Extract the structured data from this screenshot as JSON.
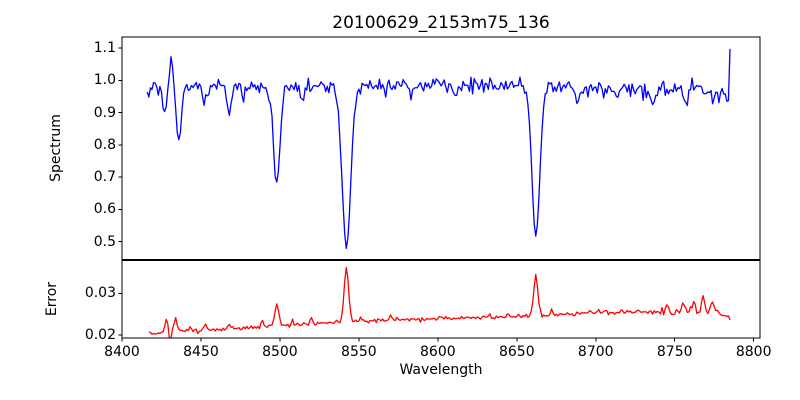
{
  "figure": {
    "background": "#ffffff",
    "text_color": "#000000",
    "axes_color": "#000000"
  },
  "chart_data": [
    {
      "type": "line",
      "name": "spectrum",
      "title": "20100629_2153m75_136",
      "ylabel": "Spectrum",
      "line_color": "#0000ff",
      "grid": false,
      "legend": "none",
      "xlim": [
        8400,
        8804
      ],
      "ylim": [
        0.4447,
        1.134
      ],
      "yticks": [
        {
          "value": 0.5,
          "label": "0.5"
        },
        {
          "value": 0.6,
          "label": "0.6"
        },
        {
          "value": 0.7,
          "label": "0.7"
        },
        {
          "value": 0.8,
          "label": "0.8"
        },
        {
          "value": 0.9,
          "label": "0.9"
        },
        {
          "value": 1.0,
          "label": "1.0"
        },
        {
          "value": 1.1,
          "label": "1.1"
        }
      ],
      "x_start": 8416,
      "x_end": 8785,
      "x_step": 1.0,
      "continuum": [
        [
          8416,
          0.971
        ],
        [
          8432,
          0.977
        ],
        [
          8450,
          0.979
        ],
        [
          8475,
          0.982
        ],
        [
          8505,
          0.979
        ],
        [
          8540,
          0.981
        ],
        [
          8565,
          0.982
        ],
        [
          8590,
          0.985
        ],
        [
          8615,
          0.988
        ],
        [
          8640,
          0.986
        ],
        [
          8665,
          0.983
        ],
        [
          8690,
          0.979
        ],
        [
          8715,
          0.977
        ],
        [
          8735,
          0.974
        ],
        [
          8755,
          0.97
        ],
        [
          8770,
          0.962
        ],
        [
          8785,
          0.955
        ]
      ],
      "features": [
        {
          "center": 8427.0,
          "amp": -0.082,
          "sigma": 1.2
        },
        {
          "center": 8431.0,
          "amp": 0.088,
          "sigma": 1.1
        },
        {
          "center": 8436.0,
          "amp": -0.172,
          "sigma": 1.5
        },
        {
          "center": 8452.0,
          "amp": -0.045,
          "sigma": 1.1
        },
        {
          "center": 8468.0,
          "amp": -0.088,
          "sigma": 1.3
        },
        {
          "center": 8477.0,
          "amp": -0.035,
          "sigma": 1.0
        },
        {
          "center": 8498.0,
          "amp": -0.295,
          "sigma": 2.1
        },
        {
          "center": 8514.0,
          "amp": -0.045,
          "sigma": 1.1
        },
        {
          "center": 8542.1,
          "amp": -0.5,
          "sigma": 2.7
        },
        {
          "center": 8582.0,
          "amp": -0.03,
          "sigma": 1.0
        },
        {
          "center": 8611.0,
          "amp": -0.03,
          "sigma": 1.0
        },
        {
          "center": 8662.1,
          "amp": -0.462,
          "sigma": 2.5
        },
        {
          "center": 8688.0,
          "amp": -0.045,
          "sigma": 1.1
        },
        {
          "center": 8713.0,
          "amp": -0.03,
          "sigma": 1.0
        },
        {
          "center": 8736.0,
          "amp": -0.04,
          "sigma": 1.1
        },
        {
          "center": 8757.0,
          "amp": -0.045,
          "sigma": 1.1
        }
      ],
      "noise_sigma": 0.011,
      "noise_boost": {
        "from": 8690,
        "factor": 1.3
      },
      "noise_scale_with_value": true,
      "end_value": 1.097,
      "line_minima_readout": {
        "8498": 0.69,
        "8542": 0.48,
        "8662": 0.52
      }
    },
    {
      "type": "line",
      "name": "error",
      "xlabel": "Wavelength",
      "ylabel": "Error",
      "line_color": "#ff0000",
      "grid": false,
      "legend": "none",
      "xlim": [
        8400,
        8804
      ],
      "ylim": [
        0.01929,
        0.03786
      ],
      "yticks": [
        {
          "value": 0.02,
          "label": "0.02"
        },
        {
          "value": 0.03,
          "label": "0.03"
        }
      ],
      "xticks": [
        {
          "value": 8400,
          "label": "8400"
        },
        {
          "value": 8450,
          "label": "8450"
        },
        {
          "value": 8500,
          "label": "8500"
        },
        {
          "value": 8550,
          "label": "8550"
        },
        {
          "value": 8600,
          "label": "8600"
        },
        {
          "value": 8650,
          "label": "8650"
        },
        {
          "value": 8700,
          "label": "8700"
        },
        {
          "value": 8750,
          "label": "8750"
        },
        {
          "value": 8800,
          "label": "8800"
        }
      ],
      "x_start": 8417,
      "x_end": 8785,
      "x_step": 1.0,
      "continuum": [
        [
          8417,
          0.0204
        ],
        [
          8440,
          0.021
        ],
        [
          8465,
          0.0215
        ],
        [
          8490,
          0.022
        ],
        [
          8515,
          0.0226
        ],
        [
          8540,
          0.0231
        ],
        [
          8565,
          0.0235
        ],
        [
          8590,
          0.0238
        ],
        [
          8615,
          0.0241
        ],
        [
          8640,
          0.0244
        ],
        [
          8665,
          0.0248
        ],
        [
          8690,
          0.0252
        ],
        [
          8715,
          0.0254
        ],
        [
          8740,
          0.0256
        ],
        [
          8762,
          0.0258
        ],
        [
          8775,
          0.026
        ],
        [
          8785,
          0.0238
        ]
      ],
      "features": [
        {
          "center": 8428.0,
          "amp": 0.003,
          "sigma": 0.8
        },
        {
          "center": 8430.5,
          "amp": -0.0024,
          "sigma": 0.6
        },
        {
          "center": 8434.0,
          "amp": 0.0034,
          "sigma": 0.8
        },
        {
          "center": 8443.0,
          "amp": 0.001,
          "sigma": 0.7
        },
        {
          "center": 8453.0,
          "amp": 0.0013,
          "sigma": 0.8
        },
        {
          "center": 8468.0,
          "amp": 0.001,
          "sigma": 0.8
        },
        {
          "center": 8489.0,
          "amp": 0.0012,
          "sigma": 0.8
        },
        {
          "center": 8498.0,
          "amp": 0.0052,
          "sigma": 1.3
        },
        {
          "center": 8508.0,
          "amp": 0.0014,
          "sigma": 0.8
        },
        {
          "center": 8520.0,
          "amp": 0.0011,
          "sigma": 0.7
        },
        {
          "center": 8542.1,
          "amp": 0.0133,
          "sigma": 1.4
        },
        {
          "center": 8551.0,
          "amp": 0.0012,
          "sigma": 0.7
        },
        {
          "center": 8570.0,
          "amp": 0.0011,
          "sigma": 0.8
        },
        {
          "center": 8602.0,
          "amp": 0.0008,
          "sigma": 0.7
        },
        {
          "center": 8662.1,
          "amp": 0.0096,
          "sigma": 1.3
        },
        {
          "center": 8672.0,
          "amp": 0.0012,
          "sigma": 0.7
        },
        {
          "center": 8702.0,
          "amp": 0.0009,
          "sigma": 0.7
        },
        {
          "center": 8745.0,
          "amp": 0.0012,
          "sigma": 0.7
        },
        {
          "center": 8755.0,
          "amp": 0.002,
          "sigma": 0.8
        },
        {
          "center": 8762.0,
          "amp": 0.0026,
          "sigma": 0.8
        },
        {
          "center": 8768.0,
          "amp": 0.0036,
          "sigma": 0.7
        },
        {
          "center": 8774.0,
          "amp": 0.0022,
          "sigma": 0.7
        }
      ],
      "noise_sigma": 0.00028,
      "noise_boost": {
        "from": 8740,
        "factor": 1.7
      },
      "noise_scale_with_value": false,
      "end_value": 0.0236,
      "peak_readout": {
        "8498": 0.0275,
        "8542": 0.037,
        "8662": 0.0346
      }
    }
  ]
}
